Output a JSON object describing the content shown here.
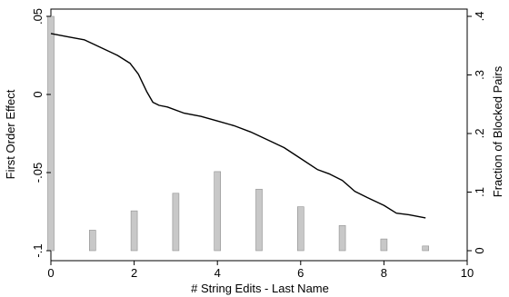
{
  "chart_data": {
    "type": "bar+line",
    "title": "",
    "xlabel": "# String Edits - Last Name",
    "ylabel_left": "First Order Effect",
    "ylabel_right": "Fraction of Blocked Pairs",
    "xlim": [
      0,
      10
    ],
    "ylim_left": [
      -0.1,
      0.05
    ],
    "ylim_right": [
      0,
      0.4
    ],
    "x_ticks": [
      0,
      2,
      4,
      6,
      8,
      10
    ],
    "x_tick_labels": [
      "0",
      "2",
      "4",
      "6",
      "8",
      "10"
    ],
    "y_left_ticks": [
      -0.1,
      -0.05,
      0,
      0.05
    ],
    "y_left_tick_labels": [
      "-.1",
      "-.05",
      "0",
      ".05"
    ],
    "y_right_ticks": [
      0,
      0.1,
      0.2,
      0.3,
      0.4
    ],
    "y_right_tick_labels": [
      "0",
      ".1",
      ".2",
      ".3",
      ".4"
    ],
    "grid": false,
    "legend": "none",
    "colors": {
      "bar_fill": "#c8c8c8",
      "bar_stroke": "#909090",
      "line": "#000000"
    },
    "bars": {
      "axis": "right",
      "x": [
        0,
        1,
        2,
        3,
        4,
        5,
        6,
        7,
        8,
        9
      ],
      "values": [
        0.4,
        0.035,
        0.068,
        0.098,
        0.135,
        0.105,
        0.075,
        0.043,
        0.02,
        0.008
      ]
    },
    "line": {
      "axis": "left",
      "x": [
        0,
        0.4,
        0.8,
        1.2,
        1.6,
        1.9,
        2.1,
        2.3,
        2.45,
        2.6,
        2.8,
        3.2,
        3.6,
        4.0,
        4.4,
        4.8,
        5.2,
        5.6,
        6.0,
        6.4,
        6.7,
        7.0,
        7.3,
        7.6,
        8.0,
        8.3,
        8.6,
        9.0
      ],
      "values": [
        0.039,
        0.037,
        0.035,
        0.03,
        0.025,
        0.02,
        0.013,
        0.002,
        -0.005,
        -0.007,
        -0.008,
        -0.012,
        -0.014,
        -0.017,
        -0.02,
        -0.024,
        -0.029,
        -0.034,
        -0.041,
        -0.048,
        -0.051,
        -0.055,
        -0.062,
        -0.066,
        -0.071,
        -0.076,
        -0.077,
        -0.079
      ]
    }
  }
}
